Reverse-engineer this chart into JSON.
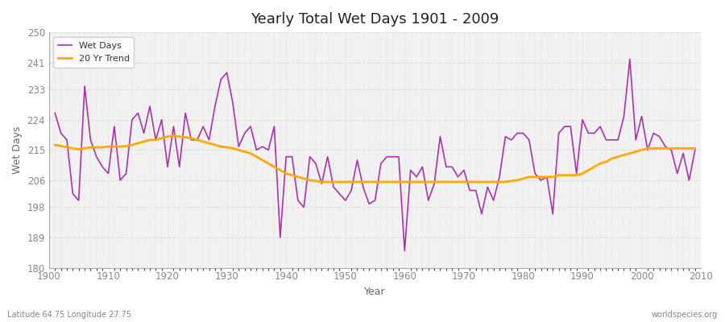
{
  "title": "Yearly Total Wet Days 1901 - 2009",
  "xlabel": "Year",
  "ylabel": "Wet Days",
  "footnote_left": "Latitude 64.75 Longitude 27.75",
  "footnote_right": "worldspecies.org",
  "ylim": [
    180,
    250
  ],
  "yticks": [
    180,
    189,
    198,
    206,
    215,
    224,
    233,
    241,
    250
  ],
  "legend_labels": [
    "Wet Days",
    "20 Yr Trend"
  ],
  "wet_days_color": "#aa33aa",
  "trend_color": "#ffaa00",
  "background_color": "#ffffff",
  "plot_bg_color": "#f2f2f2",
  "grid_color": "#dddddd",
  "years": [
    1901,
    1902,
    1903,
    1904,
    1905,
    1906,
    1907,
    1908,
    1909,
    1910,
    1911,
    1912,
    1913,
    1914,
    1915,
    1916,
    1917,
    1918,
    1919,
    1920,
    1921,
    1922,
    1923,
    1924,
    1925,
    1926,
    1927,
    1928,
    1929,
    1930,
    1931,
    1932,
    1933,
    1934,
    1935,
    1936,
    1937,
    1938,
    1939,
    1940,
    1941,
    1942,
    1943,
    1944,
    1945,
    1946,
    1947,
    1948,
    1949,
    1950,
    1951,
    1952,
    1953,
    1954,
    1955,
    1956,
    1957,
    1958,
    1959,
    1960,
    1961,
    1962,
    1963,
    1964,
    1965,
    1966,
    1967,
    1968,
    1969,
    1970,
    1971,
    1972,
    1973,
    1974,
    1975,
    1976,
    1977,
    1978,
    1979,
    1980,
    1981,
    1982,
    1983,
    1984,
    1985,
    1986,
    1987,
    1988,
    1989,
    1990,
    1991,
    1992,
    1993,
    1994,
    1995,
    1996,
    1997,
    1998,
    1999,
    2000,
    2001,
    2002,
    2003,
    2004,
    2005,
    2006,
    2007,
    2008,
    2009
  ],
  "wet_days": [
    226,
    220,
    218,
    202,
    200,
    234,
    218,
    213,
    210,
    208,
    222,
    206,
    208,
    224,
    226,
    220,
    228,
    218,
    224,
    210,
    222,
    210,
    226,
    218,
    218,
    222,
    218,
    228,
    236,
    238,
    229,
    216,
    220,
    222,
    215,
    216,
    215,
    222,
    189,
    213,
    213,
    200,
    198,
    213,
    211,
    205,
    213,
    204,
    202,
    200,
    203,
    212,
    204,
    199,
    200,
    211,
    213,
    213,
    213,
    185,
    209,
    207,
    210,
    200,
    205,
    219,
    210,
    210,
    207,
    209,
    203,
    203,
    196,
    204,
    200,
    207,
    219,
    218,
    220,
    220,
    218,
    208,
    206,
    207,
    196,
    220,
    222,
    222,
    208,
    224,
    220,
    220,
    222,
    218,
    218,
    218,
    225,
    242,
    218,
    225,
    215,
    220,
    219,
    216,
    215,
    208,
    214,
    206,
    215
  ],
  "trend": [
    216.5,
    216.2,
    215.8,
    215.5,
    215.2,
    215.5,
    215.8,
    215.8,
    215.8,
    216.0,
    216.0,
    216.0,
    216.2,
    216.5,
    217.0,
    217.5,
    218.0,
    218.0,
    218.5,
    219.0,
    219.2,
    219.0,
    218.8,
    218.5,
    218.0,
    217.5,
    217.0,
    216.5,
    216.0,
    215.8,
    215.5,
    215.0,
    214.5,
    214.0,
    213.0,
    212.0,
    211.0,
    210.0,
    209.0,
    208.0,
    207.5,
    207.0,
    206.5,
    206.0,
    205.8,
    205.5,
    205.5,
    205.5,
    205.5,
    205.5,
    205.5,
    205.5,
    205.5,
    205.5,
    205.5,
    205.5,
    205.5,
    205.5,
    205.5,
    205.5,
    205.5,
    205.5,
    205.5,
    205.5,
    205.5,
    205.5,
    205.5,
    205.5,
    205.5,
    205.5,
    205.5,
    205.5,
    205.5,
    205.5,
    205.5,
    205.5,
    205.5,
    205.8,
    206.0,
    206.5,
    207.0,
    207.0,
    207.0,
    207.0,
    207.0,
    207.5,
    207.5,
    207.5,
    207.5,
    208.0,
    209.0,
    210.0,
    211.0,
    211.5,
    212.5,
    213.0,
    213.5,
    214.0,
    214.5,
    215.0,
    215.5,
    215.5,
    215.5,
    215.5,
    215.5,
    215.5,
    215.5,
    215.5,
    215.5
  ]
}
